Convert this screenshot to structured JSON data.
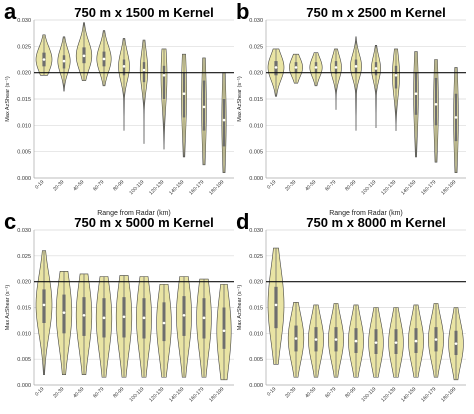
{
  "figure": {
    "colors": {
      "violin_fill": "#e9e4a4",
      "violin_stroke": "#444444",
      "box": "#6e6e6e",
      "median": "#ffffff",
      "reference_line": "#111111",
      "grid": "#d9d9d9"
    }
  },
  "chart_data": [
    {
      "panel_letter": "a",
      "title": "750 m x 1500 m Kernel",
      "type": "violin",
      "xlabel": "Range from Radar (km)",
      "ylabel": "Max AzShear (s⁻¹)",
      "ylim": [
        0,
        0.03
      ],
      "yticks": [
        "0.000",
        "0.005",
        "0.010",
        "0.015",
        "0.020",
        "0.025",
        "0.030"
      ],
      "reference_line_y": 0.02,
      "grid": true,
      "categories": [
        "0-19",
        "20-39",
        "40-59",
        "60-79",
        "80-99",
        "100-119",
        "120-139",
        "140-159",
        "160-179",
        "180-199"
      ],
      "distributions": [
        {
          "min": 0.0195,
          "max": 0.0272,
          "q1": 0.0212,
          "median": 0.0225,
          "q3": 0.0238,
          "width": 0.8
        },
        {
          "min": 0.0165,
          "max": 0.0268,
          "q1": 0.0208,
          "median": 0.0222,
          "q3": 0.0233,
          "width": 0.62
        },
        {
          "min": 0.0185,
          "max": 0.0295,
          "q1": 0.0218,
          "median": 0.0232,
          "q3": 0.0248,
          "width": 0.78
        },
        {
          "min": 0.0175,
          "max": 0.028,
          "q1": 0.0212,
          "median": 0.0226,
          "q3": 0.024,
          "width": 0.72
        },
        {
          "min": 0.009,
          "max": 0.0265,
          "q1": 0.0195,
          "median": 0.0212,
          "q3": 0.0225,
          "width": 0.55
        },
        {
          "min": 0.0065,
          "max": 0.0262,
          "q1": 0.0182,
          "median": 0.0205,
          "q3": 0.022,
          "width": 0.38
        },
        {
          "min": 0.0055,
          "max": 0.0245,
          "q1": 0.015,
          "median": 0.0195,
          "q3": 0.0213,
          "width": 0.3
        },
        {
          "min": 0.004,
          "max": 0.0235,
          "q1": 0.0115,
          "median": 0.016,
          "q3": 0.02,
          "width": 0.26
        },
        {
          "min": 0.0025,
          "max": 0.0228,
          "q1": 0.009,
          "median": 0.0135,
          "q3": 0.0185,
          "width": 0.24
        },
        {
          "min": 0.001,
          "max": 0.02,
          "q1": 0.006,
          "median": 0.011,
          "q3": 0.015,
          "width": 0.22
        }
      ]
    },
    {
      "panel_letter": "b",
      "title": "750 m x 2500 m Kernel",
      "type": "violin",
      "xlabel": "Range from Radar (km)",
      "ylabel": "Max AzShear (s⁻¹)",
      "ylim": [
        0,
        0.03
      ],
      "yticks": [
        "0.000",
        "0.005",
        "0.010",
        "0.015",
        "0.020",
        "0.025",
        "0.030"
      ],
      "reference_line_y": 0.02,
      "grid": true,
      "categories": [
        "0-19",
        "20-39",
        "40-59",
        "60-79",
        "80-99",
        "100-119",
        "120-139",
        "140-159",
        "160-179",
        "180-199"
      ],
      "distributions": [
        {
          "min": 0.0155,
          "max": 0.0245,
          "q1": 0.0195,
          "median": 0.021,
          "q3": 0.0222,
          "width": 0.8
        },
        {
          "min": 0.018,
          "max": 0.0235,
          "q1": 0.02,
          "median": 0.021,
          "q3": 0.022,
          "width": 0.66
        },
        {
          "min": 0.0175,
          "max": 0.0238,
          "q1": 0.02,
          "median": 0.021,
          "q3": 0.022,
          "width": 0.62
        },
        {
          "min": 0.013,
          "max": 0.0245,
          "q1": 0.0198,
          "median": 0.021,
          "q3": 0.0222,
          "width": 0.55
        },
        {
          "min": 0.009,
          "max": 0.0268,
          "q1": 0.02,
          "median": 0.0212,
          "q3": 0.0225,
          "width": 0.56
        },
        {
          "min": 0.0095,
          "max": 0.0252,
          "q1": 0.0195,
          "median": 0.0208,
          "q3": 0.022,
          "width": 0.46
        },
        {
          "min": 0.009,
          "max": 0.0245,
          "q1": 0.017,
          "median": 0.0195,
          "q3": 0.0213,
          "width": 0.36
        },
        {
          "min": 0.004,
          "max": 0.024,
          "q1": 0.012,
          "median": 0.016,
          "q3": 0.02,
          "width": 0.24
        },
        {
          "min": 0.003,
          "max": 0.0225,
          "q1": 0.01,
          "median": 0.014,
          "q3": 0.019,
          "width": 0.24
        },
        {
          "min": 0.001,
          "max": 0.021,
          "q1": 0.007,
          "median": 0.0115,
          "q3": 0.016,
          "width": 0.24
        }
      ]
    },
    {
      "panel_letter": "c",
      "title": "750 m x 5000 m Kernel",
      "type": "violin",
      "xlabel": "Range from Radar (km)",
      "ylabel": "Max AzShear (s⁻¹)",
      "ylim": [
        0,
        0.03
      ],
      "yticks": [
        "0.000",
        "0.005",
        "0.010",
        "0.015",
        "0.020",
        "0.025",
        "0.030"
      ],
      "reference_line_y": 0.02,
      "grid": true,
      "categories": [
        "0-19",
        "20-39",
        "40-59",
        "60-79",
        "80-99",
        "100-119",
        "120-139",
        "140-159",
        "160-179",
        "180-199"
      ],
      "distributions": [
        {
          "min": 0.002,
          "max": 0.026,
          "q1": 0.012,
          "median": 0.0155,
          "q3": 0.0185,
          "width": 0.8
        },
        {
          "min": 0.002,
          "max": 0.022,
          "q1": 0.01,
          "median": 0.014,
          "q3": 0.0175,
          "width": 0.78
        },
        {
          "min": 0.002,
          "max": 0.0215,
          "q1": 0.0095,
          "median": 0.0135,
          "q3": 0.017,
          "width": 0.78
        },
        {
          "min": 0.0015,
          "max": 0.021,
          "q1": 0.0092,
          "median": 0.013,
          "q3": 0.0168,
          "width": 0.78
        },
        {
          "min": 0.0015,
          "max": 0.0212,
          "q1": 0.0092,
          "median": 0.0132,
          "q3": 0.017,
          "width": 0.78
        },
        {
          "min": 0.0015,
          "max": 0.021,
          "q1": 0.009,
          "median": 0.013,
          "q3": 0.0168,
          "width": 0.76
        },
        {
          "min": 0.0015,
          "max": 0.0195,
          "q1": 0.0085,
          "median": 0.012,
          "q3": 0.016,
          "width": 0.74
        },
        {
          "min": 0.0015,
          "max": 0.021,
          "q1": 0.0095,
          "median": 0.0135,
          "q3": 0.0172,
          "width": 0.76
        },
        {
          "min": 0.0015,
          "max": 0.0205,
          "q1": 0.009,
          "median": 0.013,
          "q3": 0.0168,
          "width": 0.74
        },
        {
          "min": 0.001,
          "max": 0.0195,
          "q1": 0.007,
          "median": 0.0105,
          "q3": 0.015,
          "width": 0.72
        }
      ]
    },
    {
      "panel_letter": "d",
      "title": "750 m x 8000 m Kernel",
      "type": "violin",
      "xlabel": "Range from Radar (km)",
      "ylabel": "Max AzShear (s⁻¹)",
      "ylim": [
        0,
        0.03
      ],
      "yticks": [
        "0.000",
        "0.005",
        "0.010",
        "0.015",
        "0.020",
        "0.025",
        "0.030"
      ],
      "reference_line_y": 0.02,
      "grid": true,
      "categories": [
        "0-19",
        "20-39",
        "40-59",
        "60-79",
        "80-99",
        "100-119",
        "120-139",
        "140-159",
        "160-179",
        "180-199"
      ],
      "distributions": [
        {
          "min": 0.004,
          "max": 0.0265,
          "q1": 0.011,
          "median": 0.0155,
          "q3": 0.019,
          "width": 0.8
        },
        {
          "min": 0.0015,
          "max": 0.016,
          "q1": 0.0065,
          "median": 0.009,
          "q3": 0.0115,
          "width": 0.78
        },
        {
          "min": 0.0015,
          "max": 0.0155,
          "q1": 0.0065,
          "median": 0.0088,
          "q3": 0.0112,
          "width": 0.76
        },
        {
          "min": 0.0015,
          "max": 0.0158,
          "q1": 0.0065,
          "median": 0.0088,
          "q3": 0.0112,
          "width": 0.76
        },
        {
          "min": 0.0015,
          "max": 0.0155,
          "q1": 0.0062,
          "median": 0.0085,
          "q3": 0.011,
          "width": 0.76
        },
        {
          "min": 0.0015,
          "max": 0.015,
          "q1": 0.006,
          "median": 0.0082,
          "q3": 0.0108,
          "width": 0.74
        },
        {
          "min": 0.0015,
          "max": 0.015,
          "q1": 0.006,
          "median": 0.0082,
          "q3": 0.0108,
          "width": 0.74
        },
        {
          "min": 0.0015,
          "max": 0.0155,
          "q1": 0.0062,
          "median": 0.0085,
          "q3": 0.011,
          "width": 0.76
        },
        {
          "min": 0.0015,
          "max": 0.0158,
          "q1": 0.0065,
          "median": 0.0088,
          "q3": 0.0112,
          "width": 0.76
        },
        {
          "min": 0.001,
          "max": 0.015,
          "q1": 0.0058,
          "median": 0.008,
          "q3": 0.0105,
          "width": 0.74
        }
      ]
    }
  ]
}
